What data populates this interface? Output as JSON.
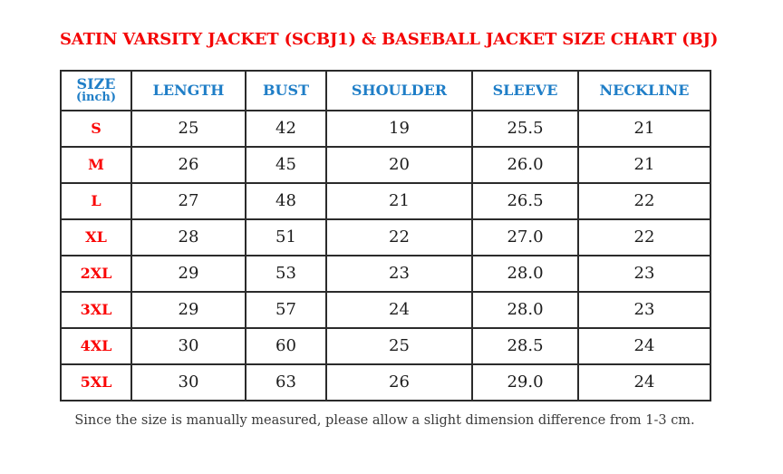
{
  "page": {
    "title": "SATIN VARSITY JACKET (SCBJ1) & BASEBALL JACKET SIZE CHART (BJ)",
    "footnote": "Since the size is manually measured, please allow a slight dimension difference from 1-3 cm."
  },
  "colors": {
    "title_red": "#f40606",
    "size_label_red": "#fa0505",
    "header_blue": "#1f7ec7",
    "cell_text": "#1c1c1c",
    "grid_border": "#2b2b2b",
    "footnote_gray": "#3a3a3a",
    "background": "#ffffff"
  },
  "table": {
    "size_header": {
      "line1": "SIZE",
      "line2": "(inch)"
    },
    "measure_headers": [
      "LENGTH",
      "BUST",
      "SHOULDER",
      "SLEEVE",
      "NECKLINE"
    ],
    "rows": [
      {
        "size": "S",
        "values": [
          "25",
          "42",
          "19",
          "25.5",
          "21"
        ]
      },
      {
        "size": "M",
        "values": [
          "26",
          "45",
          "20",
          "26.0",
          "21"
        ]
      },
      {
        "size": "L",
        "values": [
          "27",
          "48",
          "21",
          "26.5",
          "22"
        ]
      },
      {
        "size": "XL",
        "values": [
          "28",
          "51",
          "22",
          "27.0",
          "22"
        ]
      },
      {
        "size": "2XL",
        "values": [
          "29",
          "53",
          "23",
          "28.0",
          "23"
        ]
      },
      {
        "size": "3XL",
        "values": [
          "29",
          "57",
          "24",
          "28.0",
          "23"
        ]
      },
      {
        "size": "4XL",
        "values": [
          "30",
          "60",
          "25",
          "28.5",
          "24"
        ]
      },
      {
        "size": "5XL",
        "values": [
          "30",
          "63",
          "26",
          "29.0",
          "24"
        ]
      }
    ]
  },
  "chart_data": {
    "type": "table",
    "title": "SATIN VARSITY JACKET (SCBJ1) & BASEBALL JACKET SIZE CHART (BJ)",
    "units": "inch",
    "columns": [
      "SIZE (inch)",
      "LENGTH",
      "BUST",
      "SHOULDER",
      "SLEEVE",
      "NECKLINE"
    ],
    "rows": [
      [
        "S",
        "25",
        "42",
        "19",
        "25.5",
        "21"
      ],
      [
        "M",
        "26",
        "45",
        "20",
        "26.0",
        "21"
      ],
      [
        "L",
        "27",
        "48",
        "21",
        "26.5",
        "22"
      ],
      [
        "XL",
        "28",
        "51",
        "22",
        "27.0",
        "22"
      ],
      [
        "2XL",
        "29",
        "53",
        "23",
        "28.0",
        "23"
      ],
      [
        "3XL",
        "29",
        "57",
        "24",
        "28.0",
        "23"
      ],
      [
        "4XL",
        "30",
        "60",
        "25",
        "28.5",
        "24"
      ],
      [
        "5XL",
        "30",
        "63",
        "26",
        "29.0",
        "24"
      ]
    ],
    "footnote": "Since the size is manually measured, please allow a slight dimension difference from 1-3 cm."
  }
}
